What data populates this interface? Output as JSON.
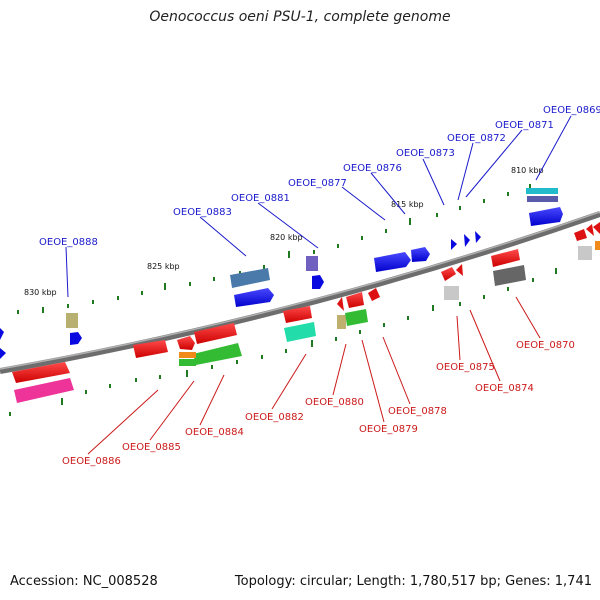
{
  "title": "Oenococcus oeni PSU-1, complete genome",
  "accession": "Accession: NC_008528",
  "summary": "Topology: circular; Length: 1,780,517 bp; Genes: 1,741",
  "colors": {
    "top_label": "#1a1acc",
    "bottom_label": "#cc1a1a",
    "backbone": "#808080",
    "tick": "#1f7a1f"
  },
  "kbp_labels": [
    "810 kbp",
    "815 kbp",
    "820 kbp",
    "825 kbp",
    "830 kbp"
  ],
  "top_labels": [
    "OEOE_0869",
    "OEOE_0871",
    "OEOE_0872",
    "OEOE_0873",
    "OEOE_0876",
    "OEOE_0877",
    "OEOE_0881",
    "OEOE_0883",
    "OEOE_0888"
  ],
  "bottom_labels": [
    "OEOE_0870",
    "OEOE_0874",
    "OEOE_0875",
    "OEOE_0878",
    "OEOE_0879",
    "OEOE_0880",
    "OEOE_0882",
    "OEOE_0884",
    "OEOE_0885",
    "OEOE_0886"
  ]
}
